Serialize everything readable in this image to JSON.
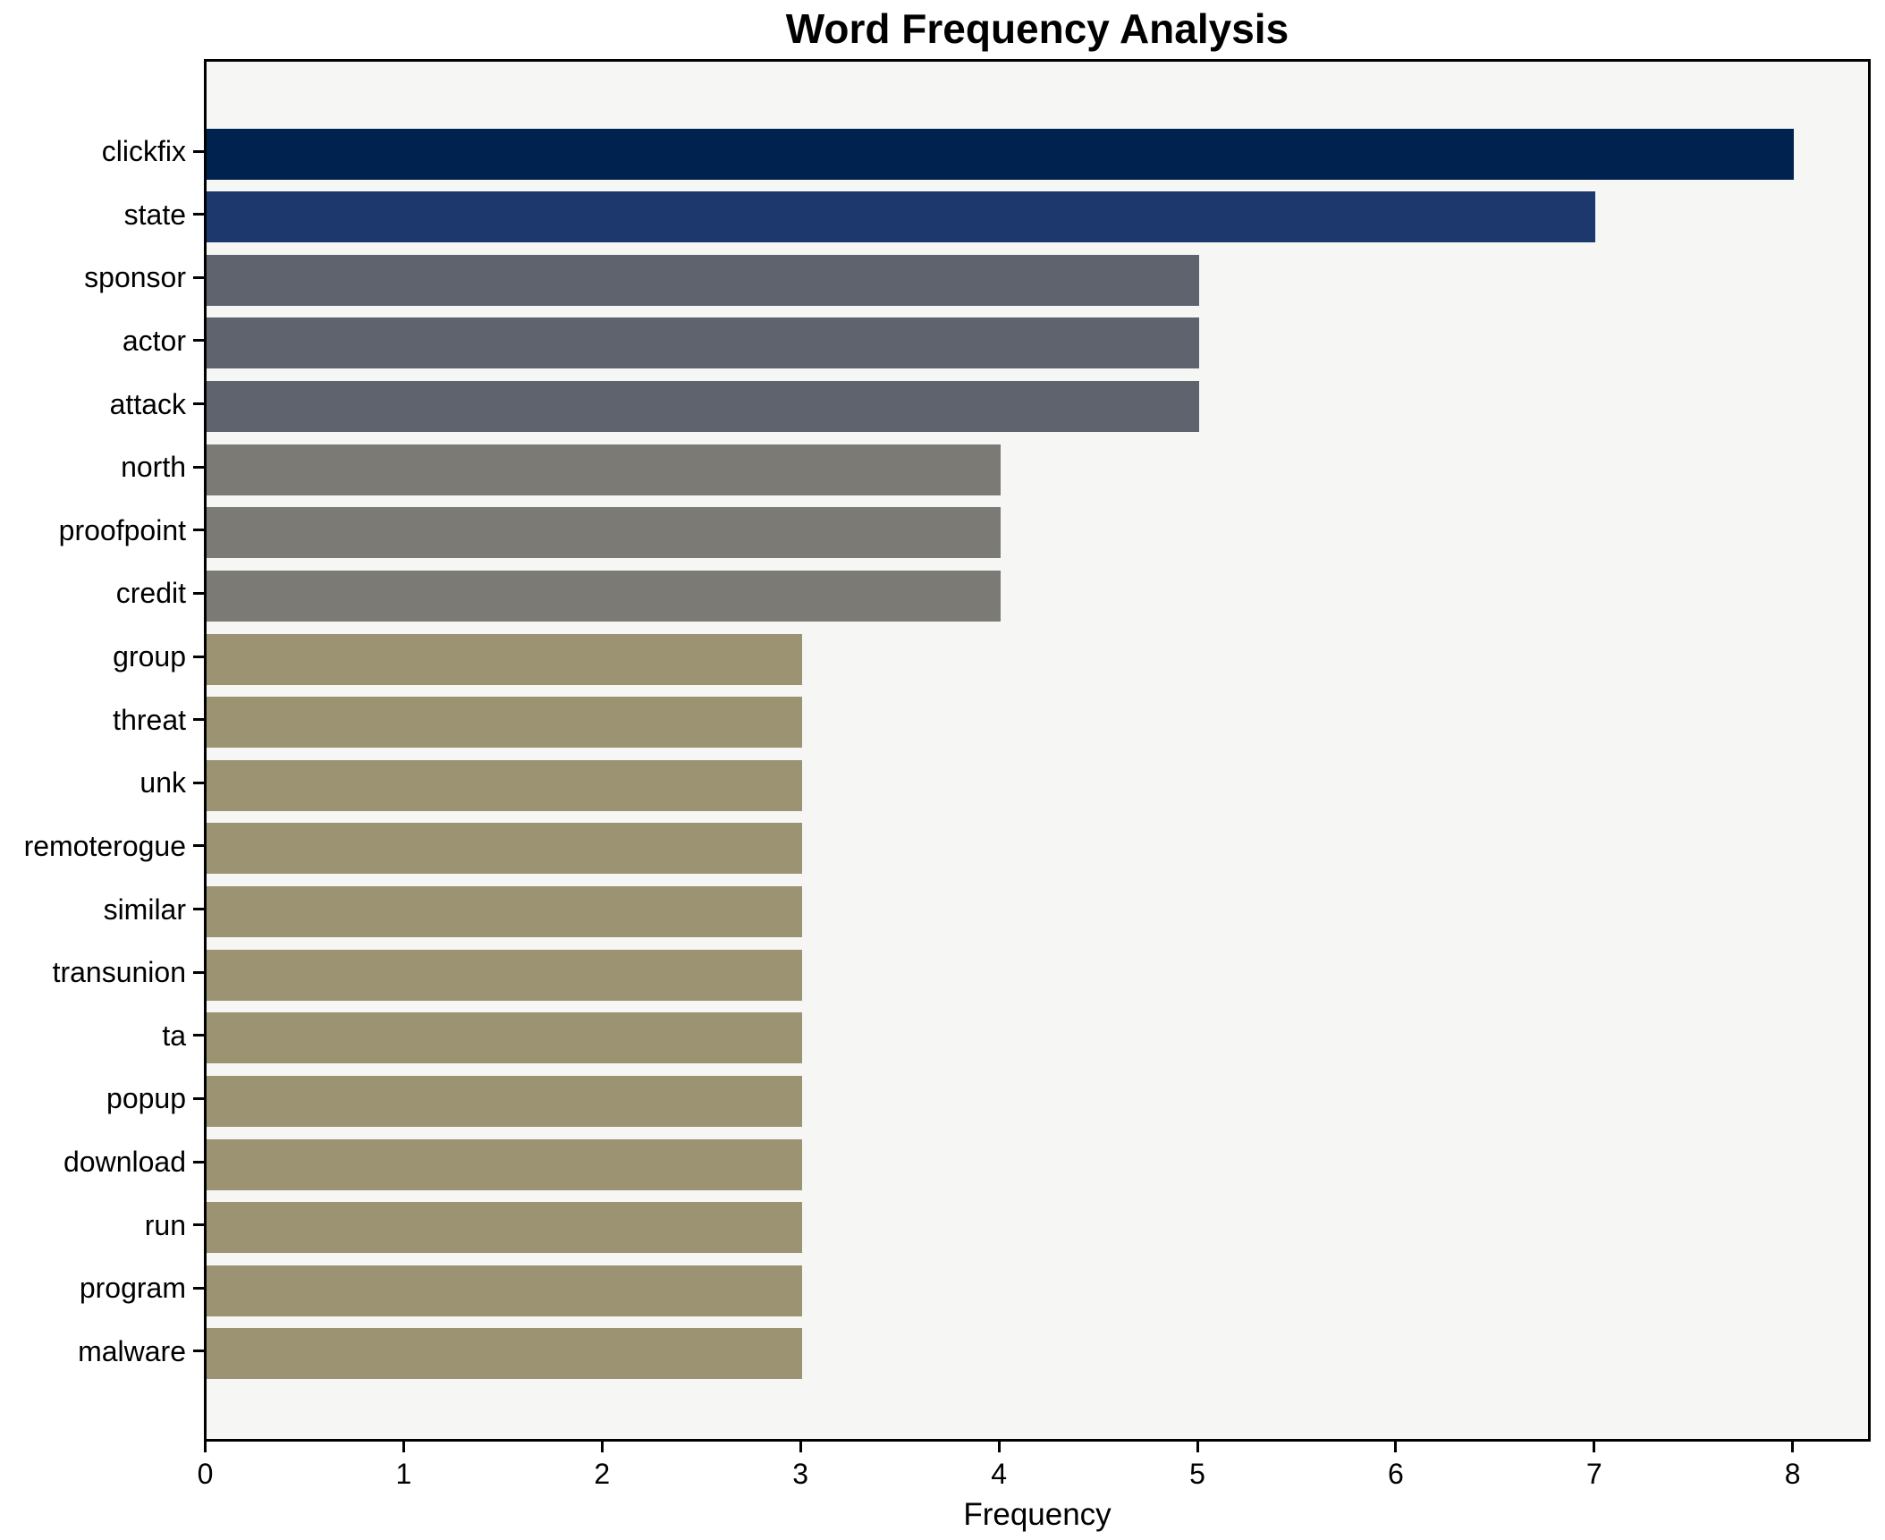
{
  "chart_data": {
    "type": "bar",
    "orientation": "horizontal",
    "title": "Word Frequency Analysis",
    "xlabel": "Frequency",
    "ylabel": "",
    "xlim": [
      0,
      8.4
    ],
    "xticks": [
      "0",
      "1",
      "2",
      "3",
      "4",
      "5",
      "6",
      "7",
      "8"
    ],
    "grid": false,
    "legend": "none",
    "categories": [
      "clickfix",
      "state",
      "sponsor",
      "actor",
      "attack",
      "north",
      "proofpoint",
      "credit",
      "group",
      "threat",
      "unk",
      "remoterogue",
      "similar",
      "transunion",
      "ta",
      "popup",
      "download",
      "run",
      "program",
      "malware"
    ],
    "values": [
      8,
      7,
      5,
      5,
      5,
      4,
      4,
      4,
      3,
      3,
      3,
      3,
      3,
      3,
      3,
      3,
      3,
      3,
      3,
      3
    ],
    "bar_colors": [
      "#00224e",
      "#1d386c",
      "#5f636e",
      "#5f636e",
      "#5f636e",
      "#7b7a74",
      "#7b7a74",
      "#7b7a74",
      "#9b9372",
      "#9b9372",
      "#9b9372",
      "#9b9372",
      "#9b9372",
      "#9b9372",
      "#9b9372",
      "#9b9372",
      "#9b9372",
      "#9b9372",
      "#9b9372",
      "#9b9372"
    ]
  },
  "colors": {
    "figure_bg": "#ffffff",
    "axes_bg": "#f6f6f5",
    "spine": "#000000",
    "text": "#000000"
  }
}
